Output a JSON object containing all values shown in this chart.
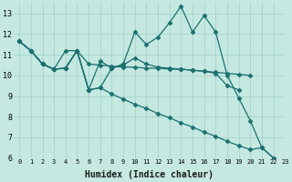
{
  "xlabel": "Humidex (Indice chaleur)",
  "bg_color": "#c5e8e0",
  "line_color": "#1a7070",
  "grid_color": "#a8d8d0",
  "xlim": [
    -0.5,
    23
  ],
  "ylim": [
    6,
    13.5
  ],
  "yticks": [
    6,
    7,
    8,
    9,
    10,
    11,
    12,
    13
  ],
  "xticks": [
    0,
    1,
    2,
    3,
    4,
    5,
    6,
    7,
    8,
    9,
    10,
    11,
    12,
    13,
    14,
    15,
    16,
    17,
    18,
    19,
    20,
    21,
    22,
    23
  ],
  "series": [
    {
      "x": [
        0,
        1,
        2,
        3,
        4,
        5,
        6,
        7,
        8,
        9,
        10,
        11,
        12,
        13,
        14,
        15,
        16,
        17,
        18,
        19,
        20,
        21,
        22,
        23
      ],
      "y": [
        11.65,
        11.2,
        10.55,
        10.3,
        10.35,
        11.2,
        9.3,
        9.4,
        10.35,
        10.55,
        12.1,
        11.5,
        11.85,
        12.55,
        13.35,
        12.1,
        12.9,
        12.1,
        10.0,
        8.9,
        7.8,
        6.5,
        6.0,
        null
      ]
    },
    {
      "x": [
        0,
        1,
        2,
        3,
        4,
        5,
        6,
        7,
        8,
        9,
        10,
        11,
        12,
        13,
        14,
        15,
        16,
        17,
        18,
        19,
        20,
        21,
        22,
        23
      ],
      "y": [
        11.65,
        11.2,
        10.55,
        10.3,
        11.2,
        11.2,
        10.55,
        10.5,
        10.45,
        10.4,
        10.4,
        10.35,
        10.35,
        10.3,
        10.3,
        10.25,
        10.2,
        10.15,
        10.1,
        10.05,
        10.0,
        null,
        null,
        null
      ]
    },
    {
      "x": [
        0,
        1,
        2,
        3,
        4,
        5,
        6,
        7,
        8,
        9,
        10,
        11,
        12,
        13,
        14,
        15,
        16,
        17,
        18,
        19,
        20,
        21,
        22,
        23
      ],
      "y": [
        11.65,
        11.2,
        10.55,
        10.3,
        10.35,
        11.2,
        9.3,
        10.7,
        10.35,
        10.5,
        10.85,
        10.55,
        10.4,
        10.35,
        10.3,
        10.25,
        10.2,
        10.1,
        9.5,
        9.3,
        null,
        null,
        null,
        null
      ]
    },
    {
      "x": [
        0,
        1,
        2,
        3,
        4,
        5,
        6,
        7,
        8,
        9,
        10,
        11,
        12,
        13,
        14,
        15,
        16,
        17,
        18,
        19,
        20,
        21,
        22,
        23
      ],
      "y": [
        11.65,
        11.2,
        10.55,
        10.3,
        10.35,
        11.2,
        9.3,
        9.4,
        9.1,
        8.85,
        8.6,
        8.4,
        8.15,
        7.95,
        7.7,
        7.5,
        7.25,
        7.05,
        6.8,
        6.6,
        6.4,
        6.5,
        6.0,
        null
      ]
    }
  ]
}
